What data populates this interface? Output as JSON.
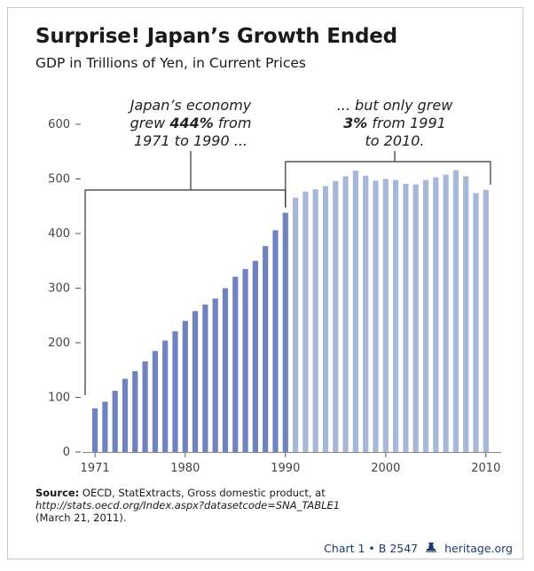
{
  "title": "Surprise! Japan’s Growth Ended",
  "subtitle": "GDP in Trillions of Yen, in Current Prices",
  "annotations": {
    "left": {
      "line1": "Japan’s economy",
      "line2_pre": "grew ",
      "line2_bold": "444%",
      "line2_post": " from",
      "line3": "1971 to 1990 ..."
    },
    "right": {
      "line1": "... but only grew",
      "line2_bold": "3%",
      "line2_post": " from 1991",
      "line3": "to 2010."
    }
  },
  "source": {
    "label": "Source:",
    "text": " OECD, StatExtracts, Gross domestic product, at",
    "url": "http://stats.oecd.org/Index.aspx?datasetcode=SNA_TABLE1",
    "date": "(March 21, 2011)."
  },
  "footer": {
    "chart_ref": "Chart 1 • B 2547",
    "bell_icon": "liberty-bell-icon",
    "site": "heritage.org"
  },
  "colors": {
    "bar_1971_1990": "#7082c0",
    "bar_1991_2010": "#a7b7d8",
    "bracket": "#333333",
    "footer": "#1f3b6e"
  },
  "chart_data": {
    "type": "bar",
    "title": "Surprise! Japan’s Growth Ended",
    "subtitle": "GDP in Trillions of Yen, in Current Prices",
    "x_ticks": [
      1971,
      1980,
      1990,
      2000,
      2010
    ],
    "y_ticks": [
      0,
      100,
      200,
      300,
      400,
      500,
      600
    ],
    "ylim": [
      0,
      600
    ],
    "grid": false,
    "series": [
      {
        "years": [
          1971,
          1972,
          1973,
          1974,
          1975,
          1976,
          1977,
          1978,
          1979,
          1980,
          1981,
          1982,
          1983,
          1984,
          1985,
          1986,
          1987,
          1988,
          1989,
          1990
        ],
        "values": [
          80,
          92,
          112,
          134,
          148,
          166,
          185,
          204,
          221,
          240,
          258,
          270,
          281,
          300,
          321,
          335,
          350,
          377,
          406,
          438
        ]
      },
      {
        "years": [
          1991,
          1992,
          1993,
          1994,
          1995,
          1996,
          1997,
          1998,
          1999,
          2000,
          2001,
          2002,
          2003,
          2004,
          2005,
          2006,
          2007,
          2008,
          2009,
          2010
        ],
        "values": [
          466,
          477,
          481,
          487,
          496,
          505,
          515,
          506,
          497,
          500,
          498,
          491,
          490,
          498,
          503,
          508,
          516,
          505,
          474,
          480
        ]
      }
    ]
  }
}
